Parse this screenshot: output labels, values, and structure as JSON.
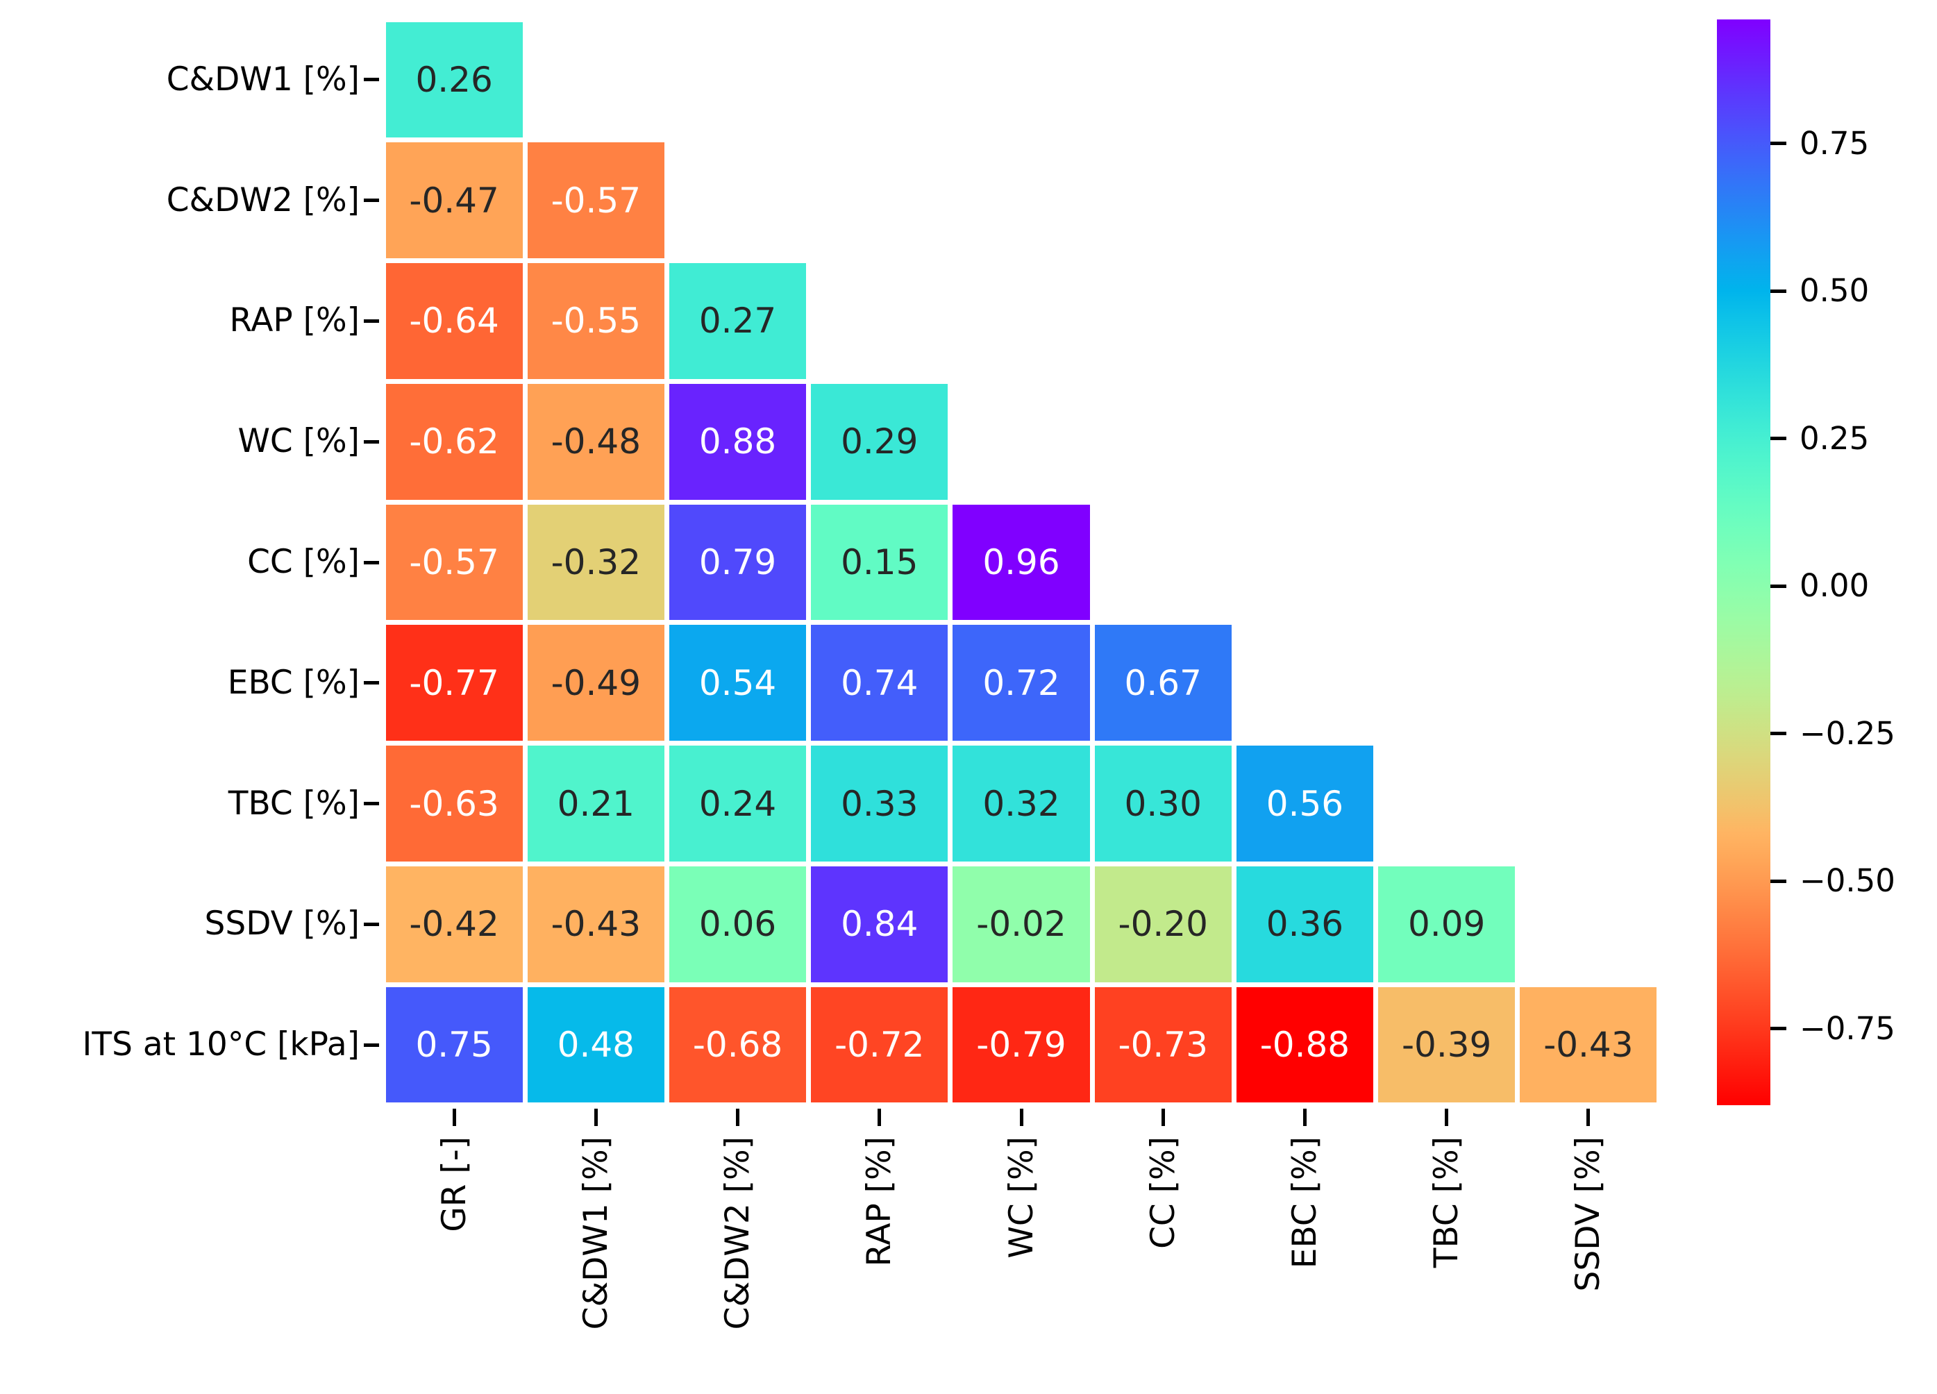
{
  "figure": {
    "background": "#ffffff"
  },
  "chart_data": {
    "type": "heatmap",
    "subtype": "lower-triangular-correlation-matrix",
    "title": "",
    "row_labels": [
      "C&DW1 [%]",
      "C&DW2 [%]",
      "RAP [%]",
      "WC [%]",
      "CC [%]",
      "EBC [%]",
      "TBC [%]",
      "SSDV [%]",
      "ITS at 10°C [kPa]"
    ],
    "col_labels": [
      "GR [-]",
      "C&DW1 [%]",
      "C&DW2 [%]",
      "RAP [%]",
      "WC [%]",
      "CC [%]",
      "EBC [%]",
      "TBC [%]",
      "SSDV [%]"
    ],
    "matrix": [
      [
        0.26
      ],
      [
        -0.47,
        -0.57
      ],
      [
        -0.64,
        -0.55,
        0.27
      ],
      [
        -0.62,
        -0.48,
        0.88,
        0.29
      ],
      [
        -0.57,
        -0.32,
        0.79,
        0.15,
        0.96
      ],
      [
        -0.77,
        -0.49,
        0.54,
        0.74,
        0.72,
        0.67
      ],
      [
        -0.63,
        0.21,
        0.24,
        0.33,
        0.32,
        0.3,
        0.56
      ],
      [
        -0.42,
        -0.43,
        0.06,
        0.84,
        -0.02,
        -0.2,
        0.36,
        0.09
      ],
      [
        0.75,
        0.48,
        -0.68,
        -0.72,
        -0.79,
        -0.73,
        -0.88,
        -0.39,
        -0.43
      ]
    ],
    "annotation_decimals": 2,
    "colormap": "rainbow_r",
    "vmin": -0.88,
    "vmax": 0.96,
    "grid_line_color": "#ffffff",
    "annotation_dark_color": "#262626",
    "annotation_light_color": "#ffffff",
    "luminance_white_text_threshold": 0.43,
    "axes": {
      "grid": false,
      "tick_color": "#000000",
      "x_tick_rotation_deg": 90
    },
    "colorbar": {
      "side": "right",
      "tick_values": [
        0.75,
        0.5,
        0.25,
        0.0,
        -0.25,
        -0.5,
        -0.75
      ],
      "tick_labels": [
        "0.75",
        "0.50",
        "0.25",
        "0.00",
        "−0.25",
        "−0.50",
        "−0.75"
      ],
      "top_color": "#8000ff",
      "bottom_color": "#ff0000"
    },
    "legend": null
  }
}
